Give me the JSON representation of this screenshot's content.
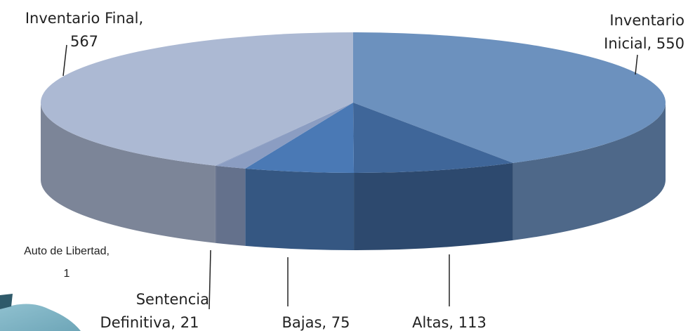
{
  "chart_data": {
    "type": "pie3d",
    "categories": [
      "Inventario Inicial",
      "Altas",
      "Bajas",
      "Sentencia Definitiva",
      "Auto de Libertad",
      "Inventario Final"
    ],
    "values": [
      550,
      113,
      75,
      21,
      1,
      567
    ],
    "colors": [
      "#6c91be",
      "#3f6699",
      "#4a79b5",
      "#8b9dc2",
      "#8b9dc2",
      "#acb9d3"
    ],
    "data_labels": [
      [
        "Inventario",
        "Inicial, 550"
      ],
      [
        "Altas, 113"
      ],
      [
        "Bajas, 75"
      ],
      [
        "Sentencia",
        "Definitiva, 21"
      ],
      [
        "Auto de Libertad,",
        "1"
      ],
      [
        "Inventario Final,",
        "567"
      ]
    ]
  }
}
